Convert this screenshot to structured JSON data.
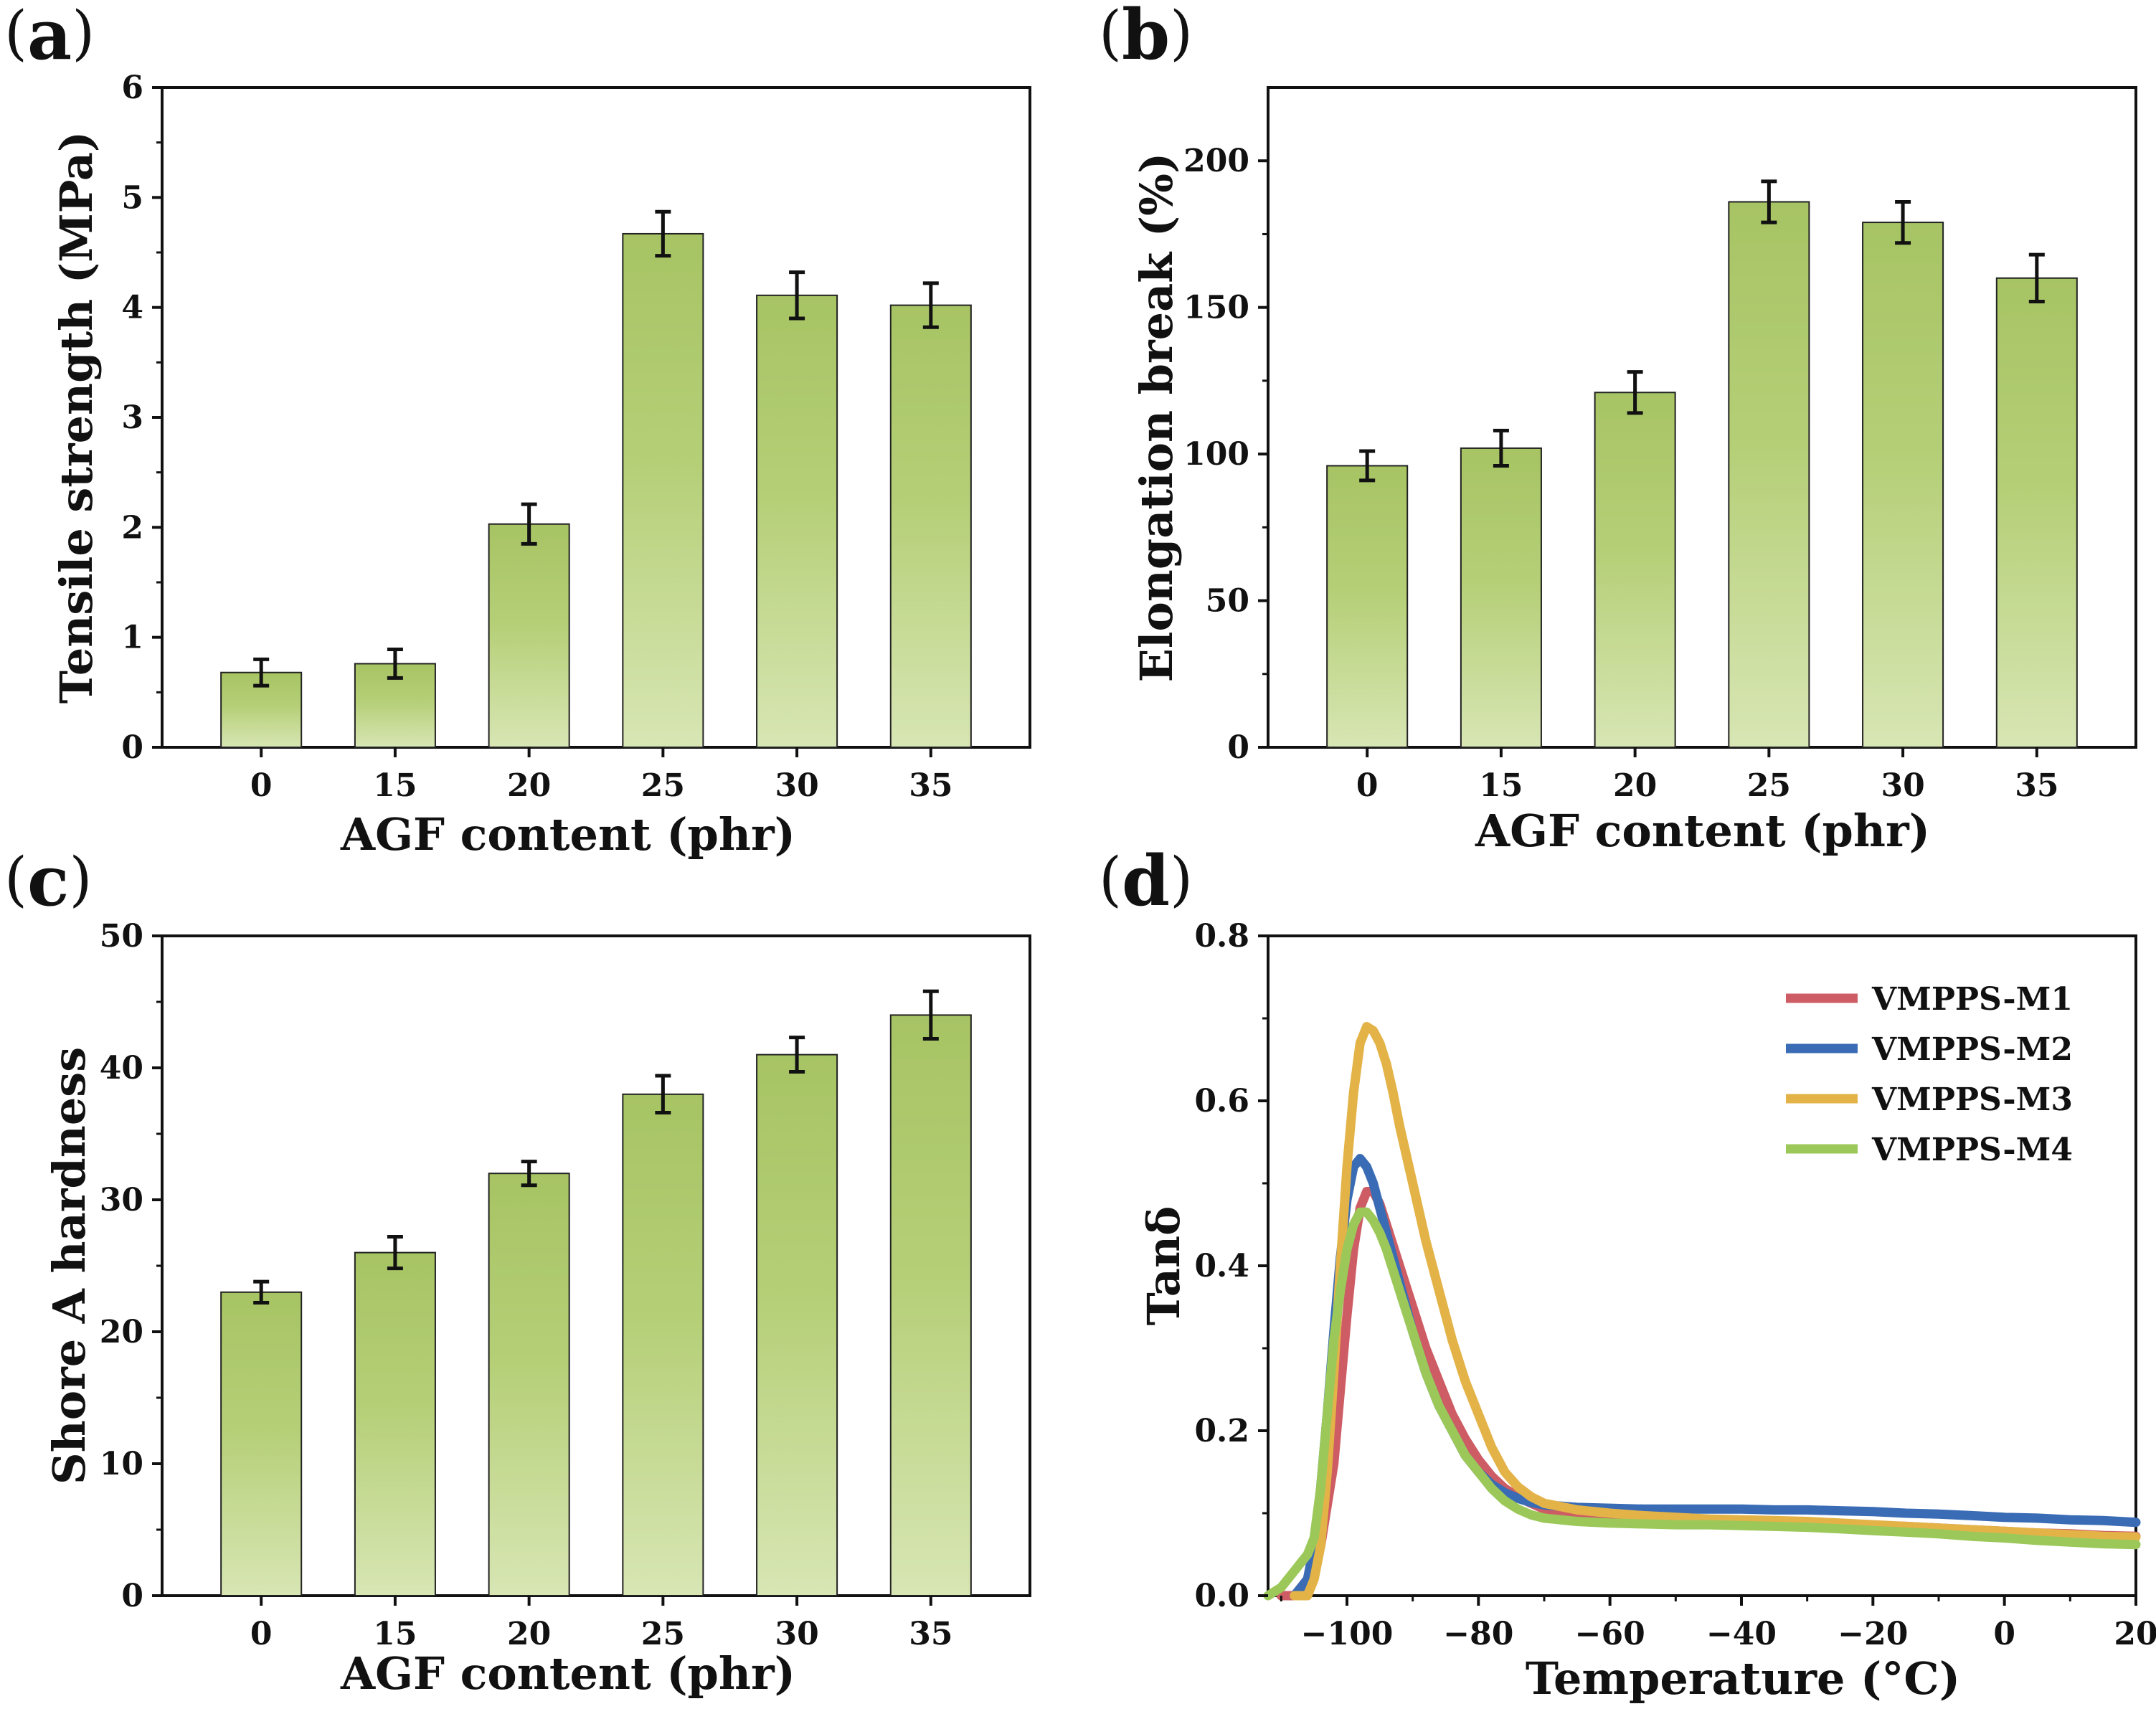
{
  "chart_data": [
    {
      "type": "bar",
      "panel": "a",
      "categories": [
        "0",
        "15",
        "20",
        "25",
        "30",
        "35"
      ],
      "values": [
        0.68,
        0.76,
        2.03,
        4.67,
        4.11,
        4.02
      ],
      "errors": [
        0.12,
        0.13,
        0.18,
        0.2,
        0.21,
        0.2
      ],
      "xlabel": "AGF content (phr)",
      "ylabel": "Tensile strength (MPa)",
      "ylim": [
        0,
        6
      ],
      "yticks": [
        0,
        1,
        2,
        3,
        4,
        5,
        6
      ],
      "grid": false
    },
    {
      "type": "bar",
      "panel": "b",
      "categories": [
        "0",
        "15",
        "20",
        "25",
        "30",
        "35"
      ],
      "values": [
        96,
        102,
        121,
        186,
        179,
        160
      ],
      "errors": [
        5,
        6,
        7,
        7,
        7,
        8
      ],
      "xlabel": "AGF content (phr)",
      "ylabel": "Elongation break (%)",
      "ylim": [
        0,
        225
      ],
      "yticks": [
        0,
        50,
        100,
        150,
        200
      ],
      "grid": false
    },
    {
      "type": "bar",
      "panel": "c",
      "categories": [
        "0",
        "15",
        "20",
        "25",
        "30",
        "35"
      ],
      "values": [
        23,
        26,
        32,
        38,
        41,
        44
      ],
      "errors": [
        0.8,
        1.2,
        0.9,
        1.4,
        1.3,
        1.8
      ],
      "xlabel": "AGF content (phr)",
      "ylabel": "Shore A hardness",
      "ylim": [
        0,
        50
      ],
      "yticks": [
        0,
        10,
        20,
        30,
        40,
        50
      ],
      "grid": false
    },
    {
      "type": "line",
      "panel": "d",
      "xlabel": "Temperature (°C)",
      "ylabel": "Tanδ",
      "xlim": [
        -112,
        20
      ],
      "ylim": [
        0,
        0.8
      ],
      "xticks": [
        -100,
        -80,
        -60,
        -40,
        -20,
        0,
        20
      ],
      "xtick_labels": [
        "−100",
        "−80",
        "−60",
        "−40",
        "−20",
        "0",
        "20"
      ],
      "yticks": [
        0,
        0.2,
        0.4,
        0.6,
        0.8
      ],
      "ytick_labels": [
        "0.0",
        "0.2",
        "0.4",
        "0.6",
        "0.8"
      ],
      "legend_position": "top-right",
      "series": [
        {
          "name": "VMPPS-M1",
          "color": "#cd5c64",
          "x": [
            -110,
            -108,
            -106,
            -104,
            -102,
            -101,
            -100,
            -99,
            -98,
            -97,
            -96,
            -95,
            -94,
            -92,
            -90,
            -88,
            -86,
            -84,
            -82,
            -80,
            -78,
            -76,
            -74,
            -72,
            -70,
            -68,
            -65,
            -60,
            -55,
            -50,
            -45,
            -40,
            -35,
            -30,
            -25,
            -20,
            -15,
            -10,
            -5,
            0,
            5,
            10,
            15,
            20
          ],
          "y": [
            0.0,
            0.0,
            0.02,
            0.06,
            0.16,
            0.25,
            0.34,
            0.42,
            0.47,
            0.49,
            0.49,
            0.475,
            0.45,
            0.4,
            0.35,
            0.3,
            0.26,
            0.22,
            0.19,
            0.165,
            0.145,
            0.13,
            0.12,
            0.112,
            0.105,
            0.1,
            0.097,
            0.095,
            0.093,
            0.092,
            0.092,
            0.091,
            0.09,
            0.089,
            0.087,
            0.085,
            0.084,
            0.082,
            0.08,
            0.078,
            0.076,
            0.075,
            0.073,
            0.072
          ]
        },
        {
          "name": "VMPPS-M2",
          "color": "#3a6cb5",
          "x": [
            -108,
            -106,
            -105,
            -104,
            -103,
            -102,
            -101,
            -100,
            -99,
            -98,
            -97,
            -96,
            -95,
            -94,
            -92,
            -90,
            -88,
            -86,
            -84,
            -82,
            -80,
            -78,
            -76,
            -74,
            -72,
            -70,
            -65,
            -60,
            -55,
            -50,
            -45,
            -40,
            -35,
            -30,
            -25,
            -20,
            -15,
            -10,
            -5,
            0,
            5,
            10,
            15,
            20
          ],
          "y": [
            0.0,
            0.02,
            0.06,
            0.13,
            0.22,
            0.32,
            0.41,
            0.48,
            0.52,
            0.53,
            0.52,
            0.5,
            0.47,
            0.44,
            0.38,
            0.32,
            0.27,
            0.23,
            0.2,
            0.17,
            0.15,
            0.135,
            0.125,
            0.118,
            0.113,
            0.11,
            0.107,
            0.106,
            0.105,
            0.105,
            0.105,
            0.105,
            0.104,
            0.104,
            0.103,
            0.102,
            0.1,
            0.099,
            0.097,
            0.095,
            0.094,
            0.092,
            0.091,
            0.089
          ]
        },
        {
          "name": "VMPPS-M3",
          "color": "#e3b348",
          "x": [
            -108,
            -106,
            -105,
            -104,
            -103,
            -102,
            -101,
            -100,
            -99,
            -98,
            -97,
            -96,
            -95,
            -94,
            -93,
            -92,
            -90,
            -88,
            -86,
            -84,
            -82,
            -80,
            -78,
            -76,
            -74,
            -72,
            -70,
            -65,
            -60,
            -55,
            -50,
            -45,
            -40,
            -35,
            -30,
            -25,
            -20,
            -15,
            -10,
            -5,
            0,
            5,
            10,
            15,
            20
          ],
          "y": [
            0.0,
            0.0,
            0.02,
            0.06,
            0.15,
            0.27,
            0.4,
            0.52,
            0.61,
            0.67,
            0.69,
            0.685,
            0.67,
            0.645,
            0.61,
            0.57,
            0.5,
            0.43,
            0.37,
            0.31,
            0.26,
            0.22,
            0.18,
            0.15,
            0.132,
            0.12,
            0.112,
            0.104,
            0.1,
            0.097,
            0.095,
            0.093,
            0.092,
            0.091,
            0.09,
            0.088,
            0.086,
            0.084,
            0.082,
            0.08,
            0.078,
            0.076,
            0.074,
            0.072,
            0.071
          ]
        },
        {
          "name": "VMPPS-M4",
          "color": "#9cc85a",
          "x": [
            -112,
            -110,
            -108,
            -107,
            -106,
            -105,
            -104,
            -103,
            -102,
            -101,
            -100,
            -99,
            -98,
            -97,
            -96,
            -95,
            -94,
            -92,
            -90,
            -88,
            -86,
            -84,
            -82,
            -80,
            -78,
            -76,
            -74,
            -72,
            -70,
            -65,
            -60,
            -55,
            -50,
            -45,
            -40,
            -35,
            -30,
            -25,
            -20,
            -15,
            -10,
            -5,
            0,
            5,
            10,
            15,
            20
          ],
          "y": [
            0.0,
            0.01,
            0.03,
            0.04,
            0.05,
            0.07,
            0.13,
            0.22,
            0.31,
            0.37,
            0.42,
            0.45,
            0.465,
            0.465,
            0.455,
            0.44,
            0.42,
            0.37,
            0.32,
            0.27,
            0.23,
            0.2,
            0.17,
            0.15,
            0.13,
            0.115,
            0.105,
            0.098,
            0.094,
            0.09,
            0.088,
            0.087,
            0.086,
            0.086,
            0.085,
            0.084,
            0.083,
            0.081,
            0.079,
            0.077,
            0.075,
            0.072,
            0.07,
            0.067,
            0.065,
            0.063,
            0.062
          ]
        }
      ]
    }
  ],
  "style": {
    "bar_top_color": "#a7c464",
    "bar_bottom_color": "#d8e6b4",
    "bar_edge_color": "#222222",
    "axis_color": "#111111"
  }
}
